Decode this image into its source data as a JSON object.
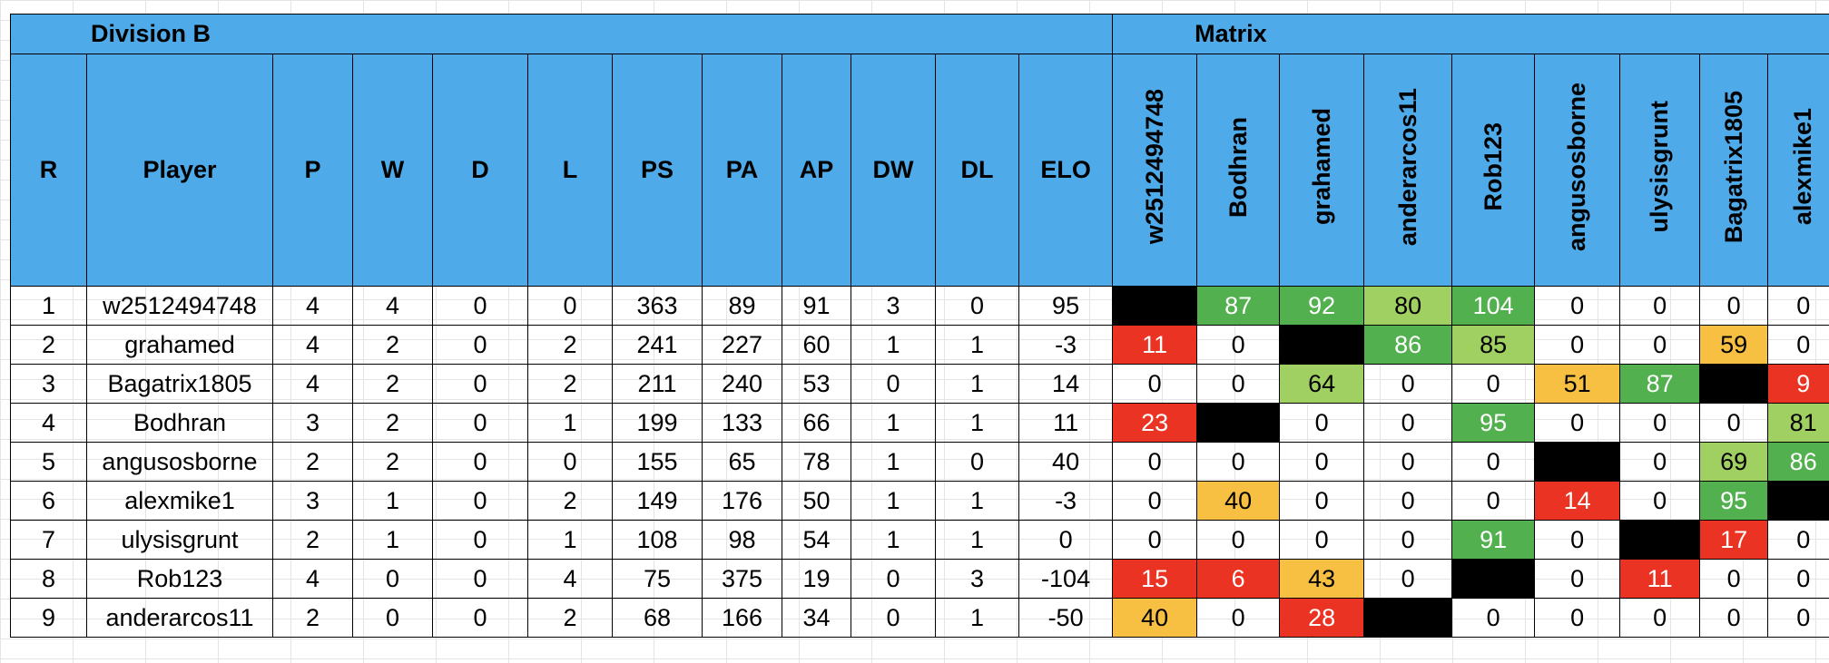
{
  "title": "Division B",
  "matrix_title": "Matrix",
  "columns": [
    "R",
    "Player",
    "P",
    "W",
    "D",
    "L",
    "PS",
    "PA",
    "AP",
    "DW",
    "DL",
    "ELO"
  ],
  "matrix_columns": [
    "w2512494748",
    "Bodhran",
    "grahamed",
    "anderarcos11",
    "Rob123",
    "angusosborne",
    "ulysisgrunt",
    "Bagatrix1805",
    "alexmike1"
  ],
  "colors": {
    "header_blue": "#4eaae8",
    "self_black": "#000000",
    "red": "#ea3323",
    "orange": "#f7c042",
    "dark_green": "#52b04f",
    "light_green": "#a0cf62"
  },
  "rows": [
    {
      "stats": [
        "1",
        "w2512494748",
        "4",
        "4",
        "0",
        "0",
        "363",
        "89",
        "91",
        "3",
        "0",
        "95"
      ],
      "matrix": [
        "",
        "87",
        "92",
        "80",
        "104",
        "0",
        "0",
        "0",
        "0"
      ],
      "matrix_colors": [
        "black",
        "dgreen",
        "dgreen",
        "lgreen",
        "dgreen",
        "",
        "",
        "",
        ""
      ]
    },
    {
      "stats": [
        "2",
        "grahamed",
        "4",
        "2",
        "0",
        "2",
        "241",
        "227",
        "60",
        "1",
        "1",
        "-3"
      ],
      "matrix": [
        "11",
        "0",
        "",
        "86",
        "85",
        "0",
        "0",
        "59",
        "0"
      ],
      "matrix_colors": [
        "red",
        "",
        "black",
        "dgreen",
        "lgreen",
        "",
        "",
        "orange",
        ""
      ]
    },
    {
      "stats": [
        "3",
        "Bagatrix1805",
        "4",
        "2",
        "0",
        "2",
        "211",
        "240",
        "53",
        "0",
        "1",
        "14"
      ],
      "matrix": [
        "0",
        "0",
        "64",
        "0",
        "0",
        "51",
        "87",
        "",
        "9"
      ],
      "matrix_colors": [
        "",
        "",
        "lgreen",
        "",
        "",
        "orange",
        "dgreen",
        "black",
        "red"
      ]
    },
    {
      "stats": [
        "4",
        "Bodhran",
        "3",
        "2",
        "0",
        "1",
        "199",
        "133",
        "66",
        "1",
        "1",
        "11"
      ],
      "matrix": [
        "23",
        "",
        "0",
        "0",
        "95",
        "0",
        "0",
        "0",
        "81"
      ],
      "matrix_colors": [
        "red",
        "black",
        "",
        "",
        "dgreen",
        "",
        "",
        "",
        "lgreen"
      ]
    },
    {
      "stats": [
        "5",
        "angusosborne",
        "2",
        "2",
        "0",
        "0",
        "155",
        "65",
        "78",
        "1",
        "0",
        "40"
      ],
      "matrix": [
        "0",
        "0",
        "0",
        "0",
        "0",
        "",
        "0",
        "69",
        "86"
      ],
      "matrix_colors": [
        "",
        "",
        "",
        "",
        "",
        "black",
        "",
        "lgreen",
        "dgreen"
      ]
    },
    {
      "stats": [
        "6",
        "alexmike1",
        "3",
        "1",
        "0",
        "2",
        "149",
        "176",
        "50",
        "1",
        "1",
        "-3"
      ],
      "matrix": [
        "0",
        "40",
        "0",
        "0",
        "0",
        "14",
        "0",
        "95",
        ""
      ],
      "matrix_colors": [
        "",
        "orange",
        "",
        "",
        "",
        "red",
        "",
        "dgreen",
        "black"
      ]
    },
    {
      "stats": [
        "7",
        "ulysisgrunt",
        "2",
        "1",
        "0",
        "1",
        "108",
        "98",
        "54",
        "1",
        "1",
        "0"
      ],
      "matrix": [
        "0",
        "0",
        "0",
        "0",
        "91",
        "0",
        "",
        "17",
        "0"
      ],
      "matrix_colors": [
        "",
        "",
        "",
        "",
        "dgreen",
        "",
        "black",
        "red",
        ""
      ]
    },
    {
      "stats": [
        "8",
        "Rob123",
        "4",
        "0",
        "0",
        "4",
        "75",
        "375",
        "19",
        "0",
        "3",
        "-104"
      ],
      "matrix": [
        "15",
        "6",
        "43",
        "0",
        "",
        "0",
        "11",
        "0",
        "0"
      ],
      "matrix_colors": [
        "red",
        "red",
        "orange",
        "",
        "black",
        "",
        "red",
        "",
        ""
      ]
    },
    {
      "stats": [
        "9",
        "anderarcos11",
        "2",
        "0",
        "0",
        "2",
        "68",
        "166",
        "34",
        "0",
        "1",
        "-50"
      ],
      "matrix": [
        "40",
        "0",
        "28",
        "",
        "0",
        "0",
        "0",
        "0",
        "0"
      ],
      "matrix_colors": [
        "orange",
        "",
        "red",
        "black",
        "",
        "",
        "",
        "",
        ""
      ]
    }
  ]
}
